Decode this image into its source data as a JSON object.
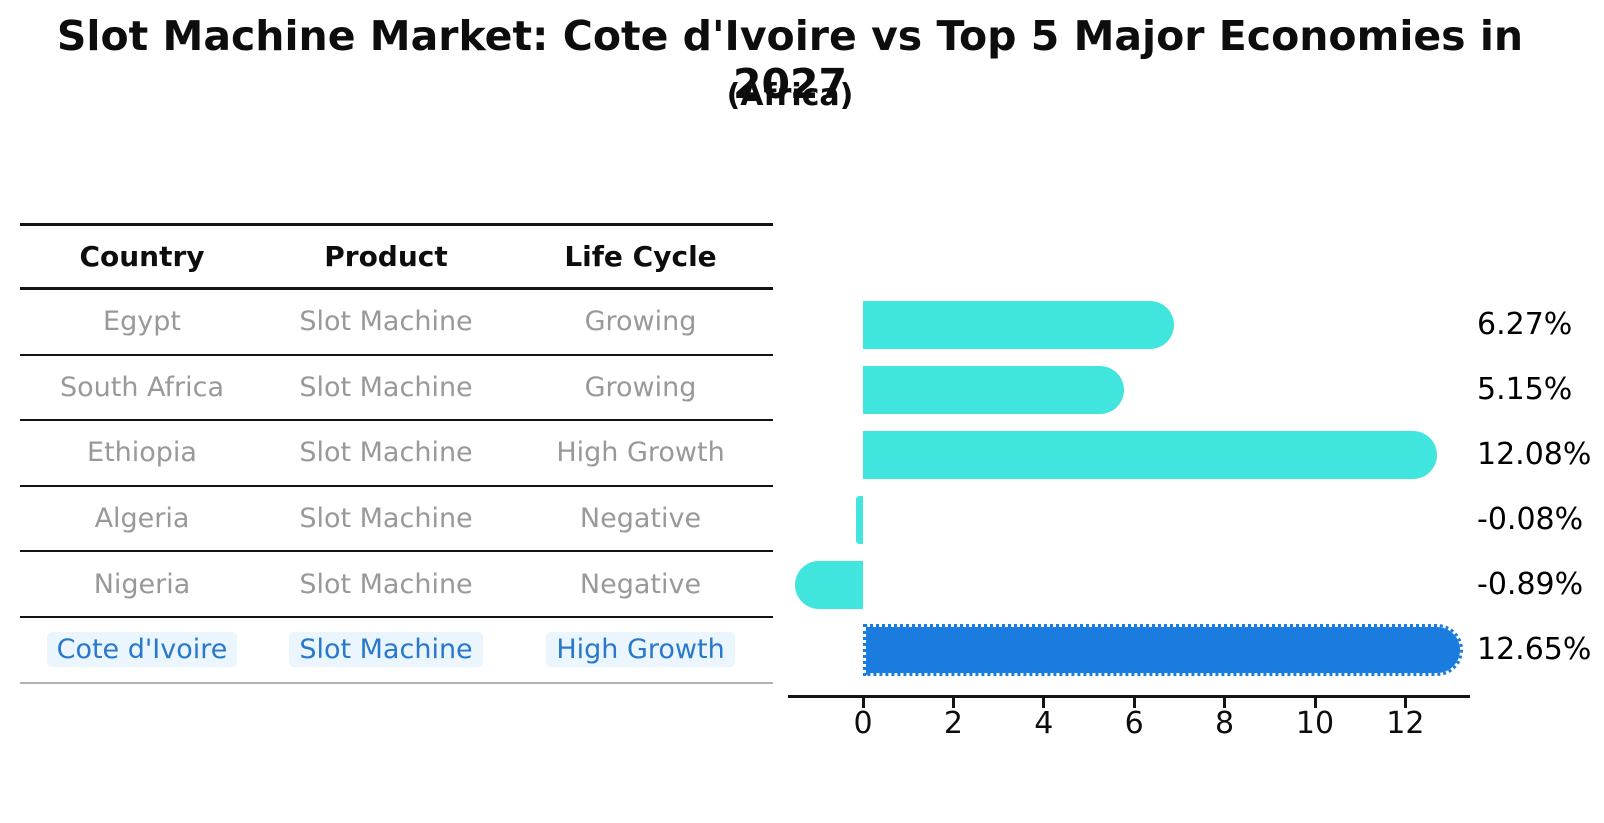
{
  "title": "Slot Machine Market: Cote d'Ivoire vs Top 5 Major Economies in 2027",
  "subtitle": "(Africa)",
  "table": {
    "headers": [
      "Country",
      "Product",
      "Life Cycle"
    ],
    "rows": [
      {
        "country": "Egypt",
        "product": "Slot Machine",
        "life_cycle": "Growing",
        "highlighted": false
      },
      {
        "country": "South Africa",
        "product": "Slot Machine",
        "life_cycle": "Growing",
        "highlighted": false
      },
      {
        "country": "Ethiopia",
        "product": "Slot Machine",
        "life_cycle": "High Growth",
        "highlighted": false
      },
      {
        "country": "Algeria",
        "product": "Slot Machine",
        "life_cycle": "Negative",
        "highlighted": false
      },
      {
        "country": "Nigeria",
        "product": "Slot Machine",
        "life_cycle": "Negative",
        "highlighted": false
      },
      {
        "country": "Cote d'Ivoire",
        "product": "Slot Machine",
        "life_cycle": "High Growth",
        "highlighted": true
      }
    ]
  },
  "chart_data": {
    "type": "bar",
    "orientation": "horizontal",
    "title": "Slot Machine Market: Cote d'Ivoire vs Top 5 Major Economies in 2027 (Africa)",
    "categories": [
      "Egypt",
      "South Africa",
      "Ethiopia",
      "Algeria",
      "Nigeria",
      "Cote d'Ivoire"
    ],
    "values": [
      6.27,
      5.15,
      12.08,
      -0.08,
      -0.89,
      12.65
    ],
    "value_labels": [
      "6.27%",
      "5.15%",
      "12.08%",
      "-0.08%",
      "-0.89%",
      "12.65%"
    ],
    "x_ticks": [
      0,
      2,
      4,
      6,
      8,
      10,
      12
    ],
    "xlim": [
      -1.7,
      13.4
    ],
    "grid": false,
    "legend": "none",
    "bar_color": "#40e5de",
    "highlight_color": "#1b7ce0",
    "highlight_index": 5
  },
  "colors": {
    "bar_cyan": "#40e5de",
    "bar_blue": "#1b7ce0",
    "table_text_gray": "#999999",
    "table_text_blue": "#2878cb",
    "axis_black": "#141414"
  }
}
